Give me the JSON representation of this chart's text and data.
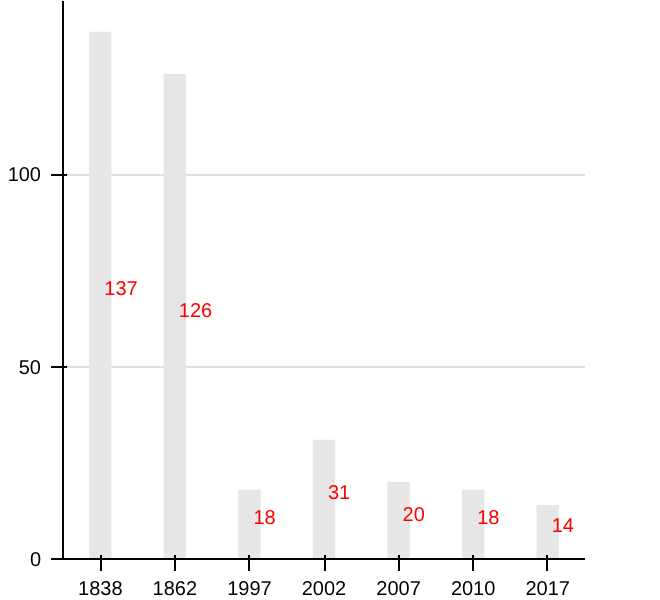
{
  "chart_data": {
    "type": "bar",
    "categories": [
      "1838",
      "1862",
      "1997",
      "2002",
      "2007",
      "2010",
      "2017"
    ],
    "values": [
      137,
      126,
      18,
      31,
      20,
      18,
      14
    ],
    "color": "#e6e6e6",
    "data_labels": true,
    "ylim": [
      0,
      145
    ],
    "yticks": [
      0,
      50,
      100
    ],
    "grid": "y"
  }
}
